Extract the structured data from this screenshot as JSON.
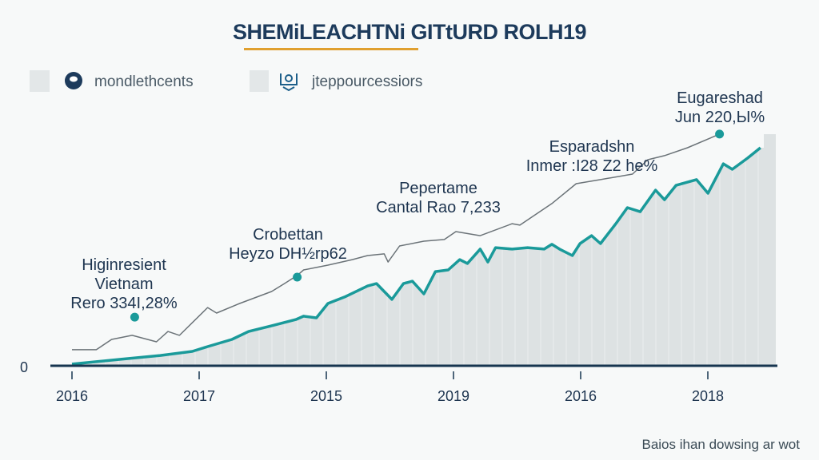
{
  "chart_data": {
    "type": "line",
    "title": "SHEMiLEACHTNi GITtURD ROLH19",
    "legend": [
      {
        "label": "mondlethcents",
        "icon": "circle-badge-icon"
      },
      {
        "label": "jteppourcessiors",
        "icon": "handshake-icon"
      }
    ],
    "legend_placement": "top-left",
    "x_tick_labels": [
      "2016",
      "2017",
      "2015",
      "2019",
      "2016",
      "2018"
    ],
    "y_tick_labels": [
      "0"
    ],
    "xlim": [
      0,
      5.5
    ],
    "ylim": [
      0,
      100
    ],
    "grid": false,
    "series": [
      {
        "name": "mondlethcents",
        "color": "#1a9a9a",
        "x": [
          0,
          0.38,
          0.69,
          0.94,
          1.06,
          1.25,
          1.38,
          1.56,
          1.75,
          1.81,
          1.91,
          2.0,
          2.13,
          2.31,
          2.38,
          2.44,
          2.5,
          2.59,
          2.66,
          2.75,
          2.84,
          2.94,
          3.03,
          3.09,
          3.19,
          3.25,
          3.31,
          3.44,
          3.56,
          3.69,
          3.75,
          3.81,
          3.91,
          3.97,
          4.06,
          4.13,
          4.25,
          4.34,
          4.44,
          4.56,
          4.63,
          4.72,
          4.88,
          4.97,
          5.09,
          5.16,
          5.28,
          5.38
        ],
        "y": [
          0.7,
          2.7,
          4.3,
          6,
          8,
          11,
          14.3,
          16.7,
          19.3,
          20.7,
          20,
          26,
          28.7,
          33.3,
          34.3,
          31,
          27.7,
          34.3,
          35.3,
          30,
          39.3,
          40,
          44.3,
          42.7,
          48.7,
          43.3,
          49.3,
          48.7,
          49.3,
          48.7,
          50.7,
          48.7,
          46,
          51,
          54.3,
          51,
          59.3,
          66,
          64.3,
          73.3,
          69.3,
          75.3,
          77.7,
          72,
          84.3,
          82,
          86.7,
          91
        ]
      },
      {
        "name": "jteppourcessiors",
        "color": "#6b7378",
        "x": [
          0,
          0.19,
          0.31,
          0.47,
          0.66,
          0.75,
          0.84,
          1.06,
          1.13,
          1.31,
          1.56,
          1.66,
          1.76,
          1.81,
          2.0,
          2.19,
          2.31,
          2.44,
          2.47,
          2.56,
          2.75,
          2.91,
          3.0,
          3.19,
          3.44,
          3.5,
          3.75,
          3.94,
          4.13,
          4.38,
          4.5,
          4.63,
          4.81,
          5.06
        ],
        "y": [
          6.7,
          6.7,
          11,
          12.7,
          10,
          14.3,
          12.7,
          24.3,
          22,
          26,
          31,
          34.3,
          37.7,
          40,
          42,
          44.3,
          46,
          46.7,
          43.3,
          50,
          52,
          52.7,
          56,
          54.3,
          59.3,
          58.7,
          67.7,
          76,
          77.7,
          80,
          86,
          87.7,
          91,
          96.7
        ]
      }
    ],
    "annotations": [
      {
        "lines": [
          "Higinresient",
          "Vietnam",
          "Rero 334I,28%"
        ],
        "point": [
          0.49,
          20.3
        ]
      },
      {
        "lines": [
          "Crobettan",
          "Heyzo DH½rp62"
        ],
        "point": [
          1.76,
          37
        ]
      },
      {
        "lines": [
          "Pepertame",
          "Cantal Rao 7,233"
        ],
        "point": null
      },
      {
        "lines": [
          "Esparadshn",
          "Inmer :I28 Z2 he%"
        ],
        "point": null
      },
      {
        "lines": [
          "Eugareshad",
          "Jun 220,Ы%"
        ],
        "point": [
          5.06,
          96.7
        ]
      }
    ],
    "footer": "Baios ihan dowsing ar wot",
    "colors": {
      "title": "#1d3b5c",
      "underline": "#e0a030",
      "axis": "#16354f",
      "area": "#dde2e3",
      "dot": "#1a9a9a"
    }
  }
}
